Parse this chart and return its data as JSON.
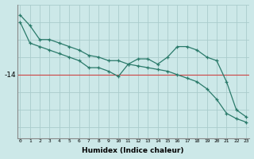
{
  "xlabel": "Humidex (Indice chaleur)",
  "background_color": "#cce8e8",
  "line_color": "#2a7a6a",
  "grid_color": "#aacccc",
  "ref_line_color": "#cc4444",
  "x_values": [
    0,
    1,
    2,
    3,
    4,
    5,
    6,
    7,
    8,
    9,
    10,
    11,
    12,
    13,
    14,
    15,
    16,
    17,
    18,
    19,
    20,
    21,
    22,
    23
  ],
  "line1": [
    -12.5,
    -13.1,
    -13.2,
    -13.3,
    -13.4,
    -13.5,
    -13.6,
    -13.8,
    -13.8,
    -13.9,
    -14.05,
    -13.7,
    -13.55,
    -13.55,
    -13.7,
    -13.5,
    -13.2,
    -13.2,
    -13.3,
    -13.5,
    -13.6,
    -14.2,
    -15.0,
    -15.2
  ],
  "line2": [
    -12.3,
    -12.6,
    -13.0,
    -13.0,
    -13.1,
    -13.2,
    -13.3,
    -13.45,
    -13.5,
    -13.6,
    -13.6,
    -13.7,
    -13.75,
    -13.8,
    -13.85,
    -13.9,
    -14.0,
    -14.1,
    -14.2,
    -14.4,
    -14.7,
    -15.1,
    -15.25,
    -15.35
  ],
  "ytick_val": -14,
  "ytick_label": "-14",
  "ylim": [
    -15.8,
    -12.0
  ],
  "xlim": [
    -0.3,
    23.3
  ]
}
